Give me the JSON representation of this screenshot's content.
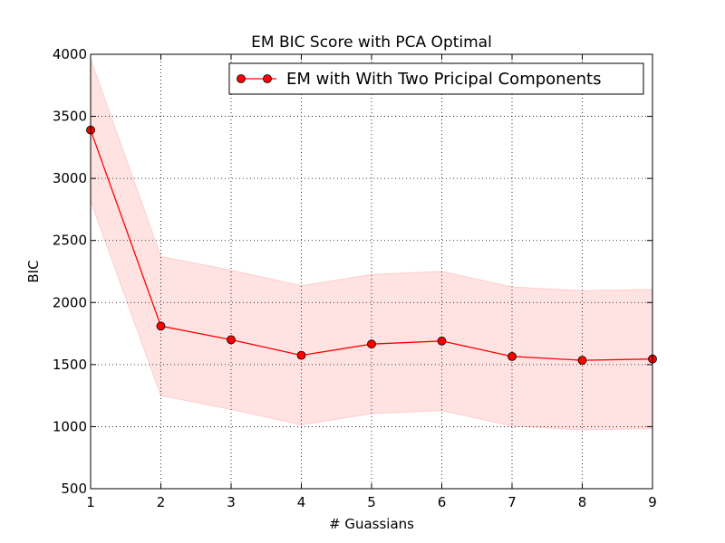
{
  "chart_data": {
    "type": "line",
    "title": "EM BIC Score with PCA Optimal",
    "xlabel": "# Guassians",
    "ylabel": "BIC",
    "x": [
      1,
      2,
      3,
      4,
      5,
      6,
      7,
      8,
      9
    ],
    "xlim": [
      1,
      9
    ],
    "ylim": [
      500,
      4000
    ],
    "xticks": [
      "1",
      "2",
      "3",
      "4",
      "5",
      "6",
      "7",
      "8",
      "9"
    ],
    "yticks": [
      "500",
      "1000",
      "1500",
      "2000",
      "2500",
      "3000",
      "3500",
      "4000"
    ],
    "grid": true,
    "legend_position": "upper-right",
    "series": [
      {
        "name": "EM with With Two Pricipal Components",
        "color": "#ff0000",
        "band_color": "#ffcccc",
        "values": [
          3390,
          1810,
          1700,
          1575,
          1665,
          1690,
          1565,
          1535,
          1545
        ],
        "upper": [
          3960,
          2370,
          2260,
          2135,
          2225,
          2250,
          2125,
          2095,
          2105
        ],
        "lower": [
          2820,
          1250,
          1140,
          1015,
          1105,
          1130,
          1005,
          975,
          985
        ]
      }
    ]
  }
}
